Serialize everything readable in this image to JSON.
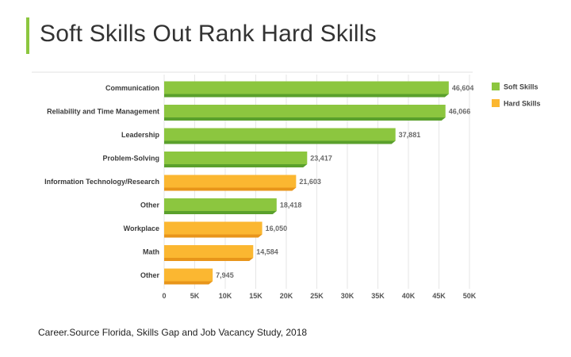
{
  "slide": {
    "title": "Soft Skills Out Rank Hard Skills",
    "source": "Career.Source Florida, Skills Gap and Job Vacancy Study, 2018",
    "accent_color": "#8cc63f"
  },
  "chart_data": {
    "type": "bar",
    "orientation": "horizontal",
    "categories": [
      "Communication",
      "Reliability and Time Management",
      "Leadership",
      "Problem-Solving",
      "Information Technology/Research",
      "Other",
      "Workplace",
      "Math",
      "Other"
    ],
    "values": [
      46604,
      46066,
      37881,
      23417,
      21603,
      18418,
      16050,
      14584,
      7945
    ],
    "value_labels": [
      "46,604",
      "46,066",
      "37,881",
      "23,417",
      "21,603",
      "18,418",
      "16,050",
      "14,584",
      "7,945"
    ],
    "groups": [
      "Soft Skills",
      "Soft Skills",
      "Soft Skills",
      "Soft Skills",
      "Hard Skills",
      "Soft Skills",
      "Hard Skills",
      "Hard Skills",
      "Hard Skills"
    ],
    "legend": [
      {
        "name": "Soft Skills",
        "color": "#8cc63f"
      },
      {
        "name": "Hard Skills",
        "color": "#fbb731"
      }
    ],
    "legend_position": "top-right",
    "xlim": [
      0,
      50000
    ],
    "x_ticks": [
      0,
      5000,
      10000,
      15000,
      20000,
      25000,
      30000,
      35000,
      40000,
      45000,
      50000
    ],
    "x_tick_labels": [
      "0",
      "5K",
      "10K",
      "15K",
      "20K",
      "25K",
      "30K",
      "35K",
      "40K",
      "45K",
      "50K"
    ],
    "grid": true
  }
}
